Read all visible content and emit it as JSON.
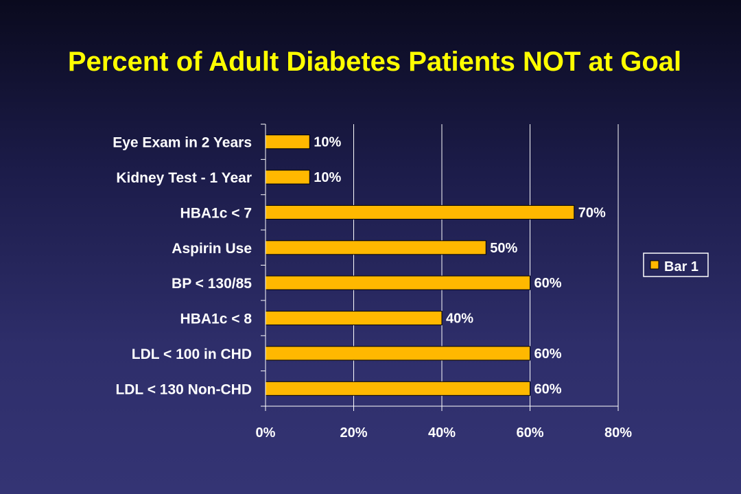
{
  "title": "Percent of Adult Diabetes Patients NOT at Goal",
  "colors": {
    "bar": "#ffb800",
    "bar_stroke": "#000000",
    "title": "#ffff00",
    "text": "#ffffff",
    "gridline": "#ffffff"
  },
  "chart_data": {
    "type": "bar",
    "orientation": "horizontal",
    "title": "Percent of Adult Diabetes Patients NOT at Goal",
    "categories": [
      "Eye Exam in 2 Years",
      "Kidney Test - 1 Year",
      "HBA1c < 7",
      "Aspirin Use",
      "BP < 130/85",
      "HBA1c < 8",
      "LDL < 100 in CHD",
      "LDL < 130 Non-CHD"
    ],
    "series": [
      {
        "name": "Bar 1",
        "values": [
          10,
          10,
          70,
          50,
          60,
          40,
          60,
          60
        ],
        "labels": [
          "10%",
          "10%",
          "70%",
          "50%",
          "60%",
          "40%",
          "60%",
          "60%"
        ]
      }
    ],
    "xlim": [
      0,
      80
    ],
    "xticks": [
      0,
      20,
      40,
      60,
      80
    ],
    "xtick_labels": [
      "0%",
      "20%",
      "40%",
      "60%",
      "80%"
    ],
    "xlabel": "",
    "ylabel": "",
    "grid": true,
    "legend": {
      "position": "right",
      "entries": [
        "Bar 1"
      ]
    }
  }
}
